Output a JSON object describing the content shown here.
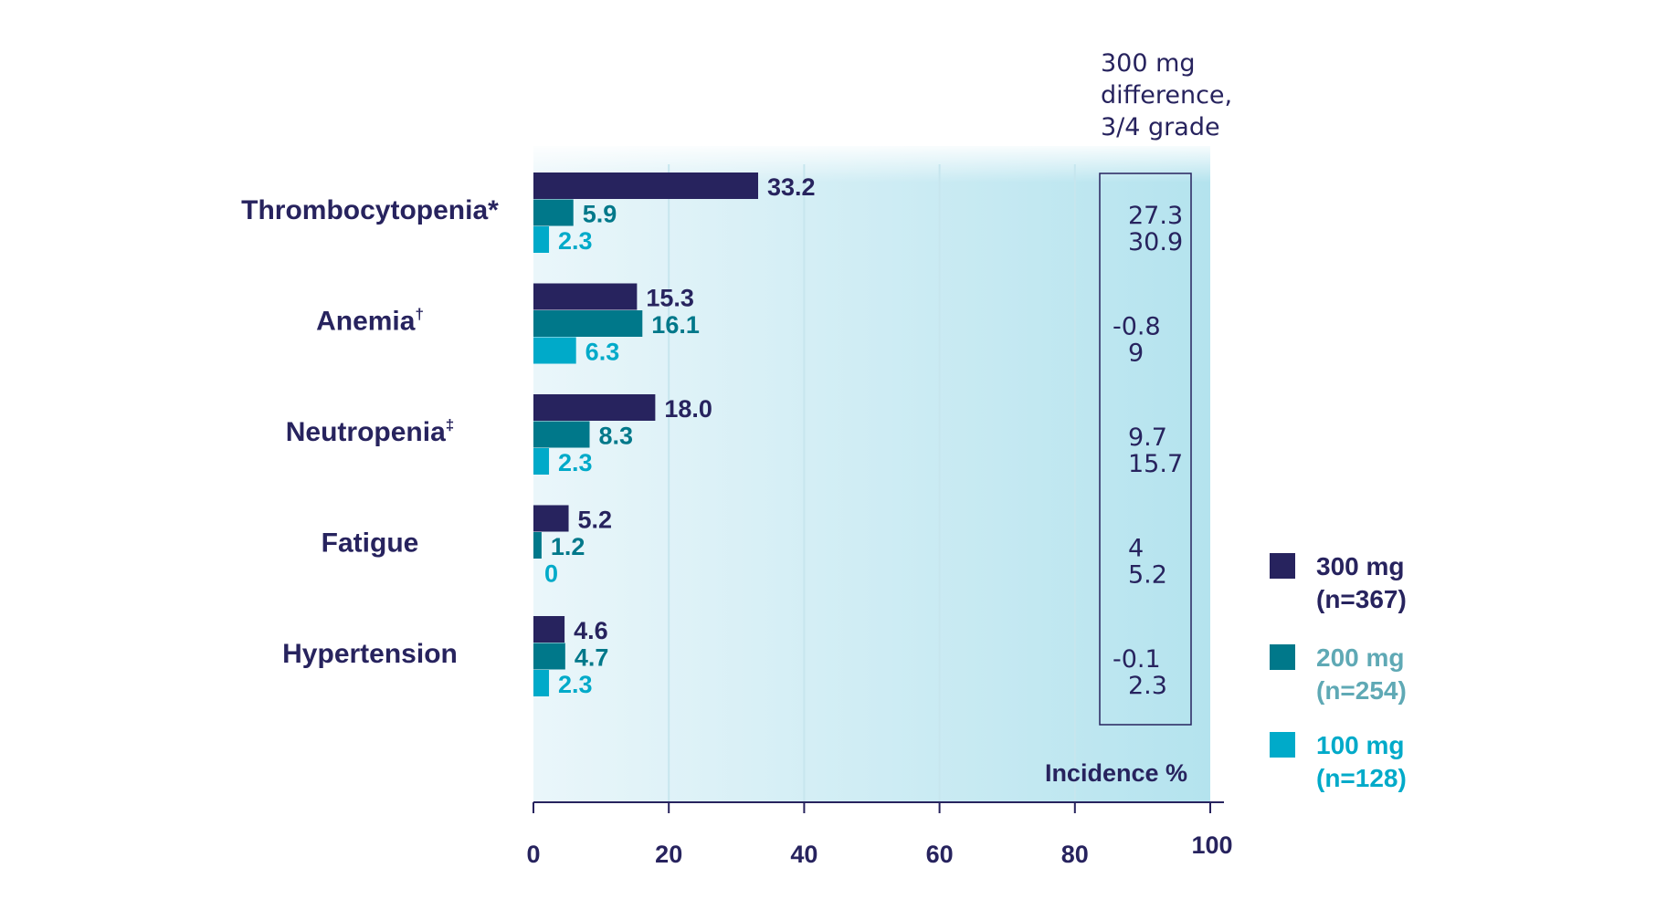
{
  "chart_data": {
    "type": "bar",
    "orientation": "horizontal",
    "categories": [
      "Thrombocytopenia*",
      "Anemia†",
      "Neutropenia‡",
      "Fatigue",
      "Hypertension"
    ],
    "series": [
      {
        "name": "300 mg\n(n=367)",
        "legend_lines": [
          "300 mg",
          "(n=367)"
        ],
        "color": "#27235e",
        "values": [
          33.2,
          15.3,
          18.0,
          5.2,
          4.6
        ],
        "labels": [
          "33.2",
          "15.3",
          "18.0",
          "5.2",
          "4.6"
        ]
      },
      {
        "name": "200 mg\n(n=254)",
        "legend_lines": [
          "200 mg",
          "(n=254)"
        ],
        "color": "#00788a",
        "legend_text_color": "#5fa9b5",
        "values": [
          5.9,
          16.1,
          8.3,
          1.2,
          4.7
        ],
        "labels": [
          "5.9",
          "16.1",
          "8.3",
          "1.2",
          "4.7"
        ]
      },
      {
        "name": "100 mg\n(n=128)",
        "legend_lines": [
          "100 mg",
          "(n=128)"
        ],
        "color": "#00aac9",
        "values": [
          2.3,
          6.3,
          2.3,
          0,
          2.3
        ],
        "labels": [
          "2.3",
          "6.3",
          "2.3",
          "0",
          "2.3"
        ]
      }
    ],
    "xlabel": "Incidence %",
    "xlim": [
      0,
      100
    ],
    "xticks": [
      "0",
      "20",
      "40",
      "60",
      "80",
      "100"
    ],
    "difference_header": [
      "300 mg",
      "difference,",
      "3/4 grade"
    ],
    "difference_values": [
      [
        "27.3",
        "30.9"
      ],
      [
        "-0.8",
        "9"
      ],
      [
        "9.7",
        "15.7"
      ],
      [
        "4",
        "5.2"
      ],
      [
        "-0.1",
        "2.3"
      ]
    ],
    "legend_position": "right",
    "grid": false
  }
}
